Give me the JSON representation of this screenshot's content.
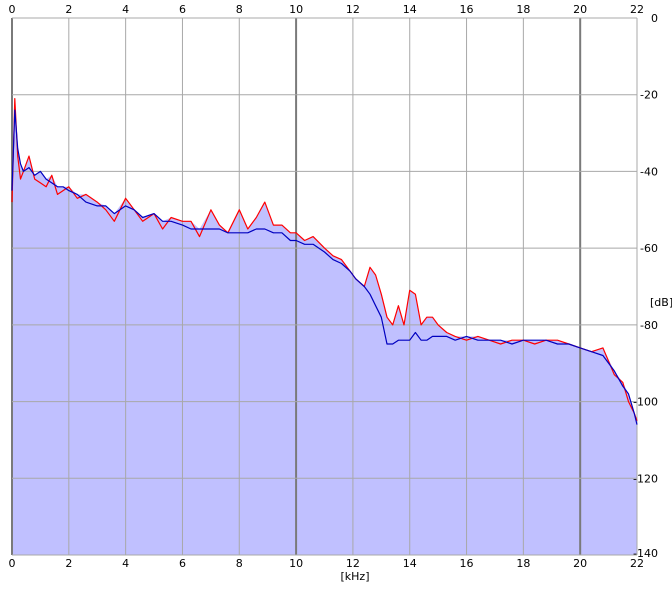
{
  "colors": {
    "background": "#ffffff",
    "fill": "#c0c0ff",
    "series_red": "#ff0000",
    "series_blue": "#0000c0",
    "grid_minor": "#a8a8a8",
    "grid_major": "#7a7a7a"
  },
  "chart_data": {
    "type": "line",
    "title": "",
    "xlabel": "[kHz]",
    "ylabel": "[dB]",
    "xlim": [
      0,
      22
    ],
    "ylim": [
      -140,
      0
    ],
    "grid": true,
    "filled_area": true,
    "x_ticks": [
      0,
      2,
      4,
      6,
      8,
      10,
      12,
      14,
      16,
      18,
      20,
      22
    ],
    "x_tick_labels": [
      "0",
      "2",
      "4",
      "6",
      "8",
      "10",
      "12",
      "14",
      "16",
      "18",
      "20",
      "22"
    ],
    "x_tick_positions": [
      "top",
      "bottom"
    ],
    "y_ticks": [
      0,
      -20,
      -40,
      -60,
      -80,
      -100,
      -120,
      -140
    ],
    "y_tick_labels": [
      "0",
      "-20",
      "-40",
      "-60",
      "-80",
      "-100",
      "-120",
      "-140"
    ],
    "y_axis_side": "right",
    "series": [
      {
        "color": "#ff0000",
        "x": [
          0,
          0.1,
          0.2,
          0.3,
          0.4,
          0.6,
          0.8,
          1,
          1.2,
          1.4,
          1.6,
          1.8,
          2,
          2.3,
          2.6,
          3,
          3.3,
          3.6,
          4,
          4.3,
          4.6,
          5,
          5.3,
          5.6,
          6,
          6.3,
          6.6,
          7,
          7.3,
          7.6,
          8,
          8.3,
          8.6,
          8.9,
          9.2,
          9.5,
          9.8,
          10,
          10.3,
          10.6,
          11,
          11.3,
          11.6,
          11.9,
          12.1,
          12.4,
          12.6,
          12.8,
          13,
          13.2,
          13.4,
          13.6,
          13.8,
          14,
          14.2,
          14.4,
          14.6,
          14.8,
          15,
          15.3,
          15.6,
          16,
          16.4,
          16.8,
          17.2,
          17.6,
          18,
          18.4,
          18.8,
          19.2,
          19.6,
          20,
          20.4,
          20.8,
          21.2,
          21.5,
          21.7,
          21.9,
          22
        ],
        "y": [
          -48,
          -21,
          -36,
          -42,
          -40,
          -36,
          -42,
          -43,
          -44,
          -41,
          -46,
          -45,
          -44,
          -47,
          -46,
          -48,
          -50,
          -53,
          -47,
          -50,
          -53,
          -51,
          -55,
          -52,
          -53,
          -53,
          -57,
          -50,
          -54,
          -56,
          -50,
          -55,
          -52,
          -48,
          -54,
          -54,
          -56,
          -56,
          -58,
          -57,
          -60,
          -62,
          -63,
          -66,
          -68,
          -70,
          -65,
          -67,
          -72,
          -78,
          -80,
          -75,
          -80,
          -71,
          -72,
          -80,
          -78,
          -78,
          -80,
          -82,
          -83,
          -84,
          -83,
          -84,
          -85,
          -84,
          -84,
          -85,
          -84,
          -84,
          -85,
          -86,
          -87,
          -86,
          -93,
          -95,
          -100,
          -103,
          -105
        ]
      },
      {
        "color": "#0000c0",
        "x": [
          0,
          0.1,
          0.2,
          0.3,
          0.4,
          0.6,
          0.8,
          1,
          1.2,
          1.4,
          1.6,
          1.8,
          2,
          2.3,
          2.6,
          3,
          3.3,
          3.6,
          4,
          4.3,
          4.6,
          5,
          5.3,
          5.6,
          6,
          6.3,
          6.6,
          7,
          7.3,
          7.6,
          8,
          8.3,
          8.6,
          8.9,
          9.2,
          9.5,
          9.8,
          10,
          10.3,
          10.6,
          11,
          11.3,
          11.6,
          11.9,
          12.1,
          12.4,
          12.6,
          12.8,
          13,
          13.2,
          13.4,
          13.6,
          13.8,
          14,
          14.2,
          14.4,
          14.6,
          14.8,
          15,
          15.3,
          15.6,
          16,
          16.4,
          16.8,
          17.2,
          17.6,
          18,
          18.4,
          18.8,
          19.2,
          19.6,
          20,
          20.4,
          20.8,
          21.2,
          21.5,
          21.7,
          21.9,
          22
        ],
        "y": [
          -45,
          -24,
          -34,
          -38,
          -40,
          -39,
          -41,
          -40,
          -42,
          -43,
          -44,
          -44,
          -45,
          -46,
          -48,
          -49,
          -49,
          -51,
          -49,
          -50,
          -52,
          -51,
          -53,
          -53,
          -54,
          -55,
          -55,
          -55,
          -55,
          -56,
          -56,
          -56,
          -55,
          -55,
          -56,
          -56,
          -58,
          -58,
          -59,
          -59,
          -61,
          -63,
          -64,
          -66,
          -68,
          -70,
          -72,
          -75,
          -78,
          -85,
          -85,
          -84,
          -84,
          -84,
          -82,
          -84,
          -84,
          -83,
          -83,
          -83,
          -84,
          -83,
          -84,
          -84,
          -84,
          -85,
          -84,
          -84,
          -84,
          -85,
          -85,
          -86,
          -87,
          -88,
          -92,
          -96,
          -98,
          -103,
          -106
        ]
      }
    ]
  }
}
